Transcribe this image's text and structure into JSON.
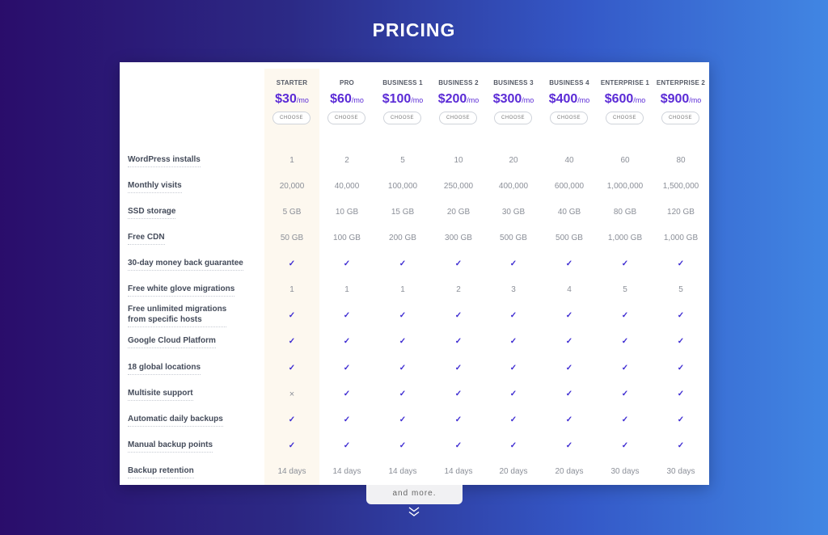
{
  "page": {
    "title": "PRICING"
  },
  "plans": [
    {
      "name": "STARTER",
      "price": "$30",
      "unit": "/mo",
      "button": "CHOOSE"
    },
    {
      "name": "PRO",
      "price": "$60",
      "unit": "/mo",
      "button": "CHOOSE"
    },
    {
      "name": "BUSINESS 1",
      "price": "$100",
      "unit": "/mo",
      "button": "CHOOSE"
    },
    {
      "name": "BUSINESS 2",
      "price": "$200",
      "unit": "/mo",
      "button": "CHOOSE"
    },
    {
      "name": "BUSINESS 3",
      "price": "$300",
      "unit": "/mo",
      "button": "CHOOSE"
    },
    {
      "name": "BUSINESS 4",
      "price": "$400",
      "unit": "/mo",
      "button": "CHOOSE"
    },
    {
      "name": "ENTERPRISE 1",
      "price": "$600",
      "unit": "/mo",
      "button": "CHOOSE"
    },
    {
      "name": "ENTERPRISE 2",
      "price": "$900",
      "unit": "/mo",
      "button": "CHOOSE"
    }
  ],
  "features": [
    {
      "label": "WordPress installs",
      "values": [
        "1",
        "2",
        "5",
        "10",
        "20",
        "40",
        "60",
        "80"
      ]
    },
    {
      "label": "Monthly visits",
      "values": [
        "20,000",
        "40,000",
        "100,000",
        "250,000",
        "400,000",
        "600,000",
        "1,000,000",
        "1,500,000"
      ]
    },
    {
      "label": "SSD storage",
      "values": [
        "5 GB",
        "10 GB",
        "15 GB",
        "20 GB",
        "30 GB",
        "40 GB",
        "80 GB",
        "120 GB"
      ]
    },
    {
      "label": "Free CDN",
      "values": [
        "50 GB",
        "100 GB",
        "200 GB",
        "300 GB",
        "500 GB",
        "500 GB",
        "1,000 GB",
        "1,000 GB"
      ]
    },
    {
      "label": "30-day money back guarantee",
      "values": [
        "✓",
        "✓",
        "✓",
        "✓",
        "✓",
        "✓",
        "✓",
        "✓"
      ]
    },
    {
      "label": "Free white glove migrations",
      "values": [
        "1",
        "1",
        "1",
        "2",
        "3",
        "4",
        "5",
        "5"
      ]
    },
    {
      "label": "Free unlimited migrations",
      "label_line2": "from specific hosts",
      "values": [
        "✓",
        "✓",
        "✓",
        "✓",
        "✓",
        "✓",
        "✓",
        "✓"
      ]
    },
    {
      "label": "Google Cloud Platform",
      "values": [
        "✓",
        "✓",
        "✓",
        "✓",
        "✓",
        "✓",
        "✓",
        "✓"
      ]
    },
    {
      "label": "18 global locations",
      "values": [
        "✓",
        "✓",
        "✓",
        "✓",
        "✓",
        "✓",
        "✓",
        "✓"
      ]
    },
    {
      "label": "Multisite support",
      "values": [
        "×",
        "✓",
        "✓",
        "✓",
        "✓",
        "✓",
        "✓",
        "✓"
      ]
    },
    {
      "label": "Automatic daily backups",
      "values": [
        "✓",
        "✓",
        "✓",
        "✓",
        "✓",
        "✓",
        "✓",
        "✓"
      ]
    },
    {
      "label": "Manual backup points",
      "values": [
        "✓",
        "✓",
        "✓",
        "✓",
        "✓",
        "✓",
        "✓",
        "✓"
      ]
    },
    {
      "label": "Backup retention",
      "values": [
        "14 days",
        "14 days",
        "14 days",
        "14 days",
        "20 days",
        "20 days",
        "30 days",
        "30 days"
      ]
    }
  ],
  "more": {
    "label": "and more.",
    "icon": "double-chevron-down-icon"
  },
  "colors": {
    "accent": "#5b2bd6",
    "check": "#3d2bd2",
    "starter_highlight": "#fdf8ef"
  }
}
